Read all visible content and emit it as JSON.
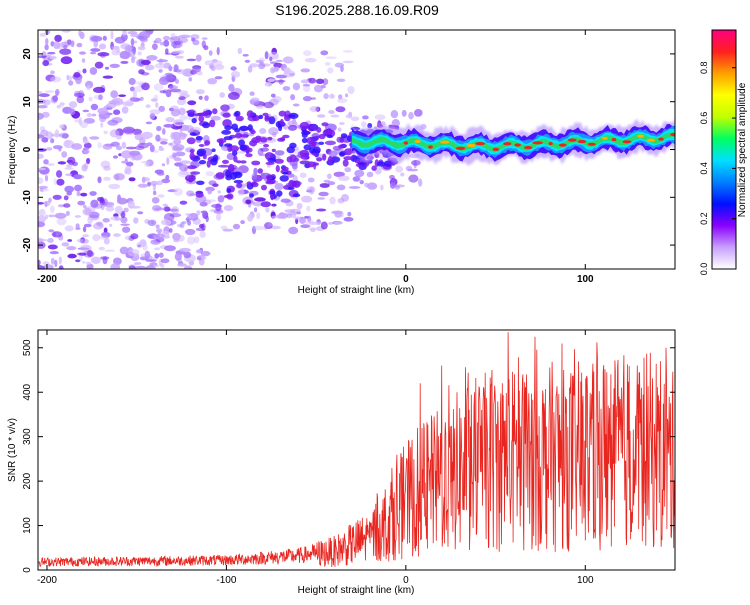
{
  "title": "S196.2025.288.16.09.R09",
  "colors": {
    "snr_line": "#e8251f",
    "axis": "#000000",
    "ridge_core": "#e8251f",
    "ridge_mid": "#2bd96a",
    "ridge_edge": "#1e8fff",
    "scatter": "#7b2cf0"
  },
  "chart_data": [
    {
      "type": "heatmap",
      "name": "spectrogram",
      "title": "S196.2025.288.16.09.R09",
      "xlabel": "Height of straight line (km)",
      "ylabel": "Frequency (Hz)",
      "xlim": [
        -205,
        150
      ],
      "ylim": [
        -25,
        25
      ],
      "xticks": [
        -200,
        -100,
        0,
        100
      ],
      "yticks": [
        -20,
        -10,
        0,
        10,
        20
      ],
      "ridge": {
        "start_km": -30,
        "end_km": 150,
        "frequency_hz": [
          1.5,
          1.5,
          1.2,
          0.8,
          0.6,
          1.0,
          1.4,
          1.8,
          2.2,
          2.6
        ],
        "peak_amplitude": 0.9
      },
      "colorbar": {
        "label": "Normalized spectral amplitude",
        "range": [
          0.0,
          0.95
        ],
        "ticks": [
          "0.0",
          "0.2",
          "0.4",
          "0.6",
          "0.8"
        ],
        "tick_values": [
          0.0,
          0.2,
          0.4,
          0.6,
          0.8
        ],
        "stops": [
          "#ffffff",
          "#c8a0ff",
          "#8a00ff",
          "#0010ff",
          "#0080ff",
          "#00e0ff",
          "#00ff60",
          "#c0ff00",
          "#ffff00",
          "#ffa000",
          "#ff2020",
          "#ff0080"
        ]
      }
    },
    {
      "type": "line",
      "name": "snr",
      "xlabel": "Height of straight line (km)",
      "ylabel": "SNR (10 * v/v)",
      "xlim": [
        -205,
        150
      ],
      "ylim": [
        0,
        540
      ],
      "xticks": [
        -200,
        -100,
        0,
        100
      ],
      "yticks": [
        0,
        100,
        200,
        300,
        400,
        500
      ],
      "series": [
        {
          "name": "SNR",
          "trend_x": [
            -205,
            -150,
            -100,
            -60,
            -40,
            -20,
            -10,
            0,
            20,
            40,
            60,
            80,
            100,
            120,
            140,
            150
          ],
          "trend_y": [
            18,
            20,
            22,
            32,
            45,
            80,
            120,
            170,
            220,
            260,
            270,
            270,
            280,
            290,
            290,
            260
          ],
          "peaks": [
            {
              "x": 57,
              "y": 535
            },
            {
              "x": 72,
              "y": 525
            },
            {
              "x": 145,
              "y": 500
            },
            {
              "x": 20,
              "y": 460
            },
            {
              "x": 48,
              "y": 450
            },
            {
              "x": 88,
              "y": 450
            },
            {
              "x": 112,
              "y": 445
            },
            {
              "x": 8,
              "y": 420
            }
          ]
        }
      ]
    }
  ]
}
